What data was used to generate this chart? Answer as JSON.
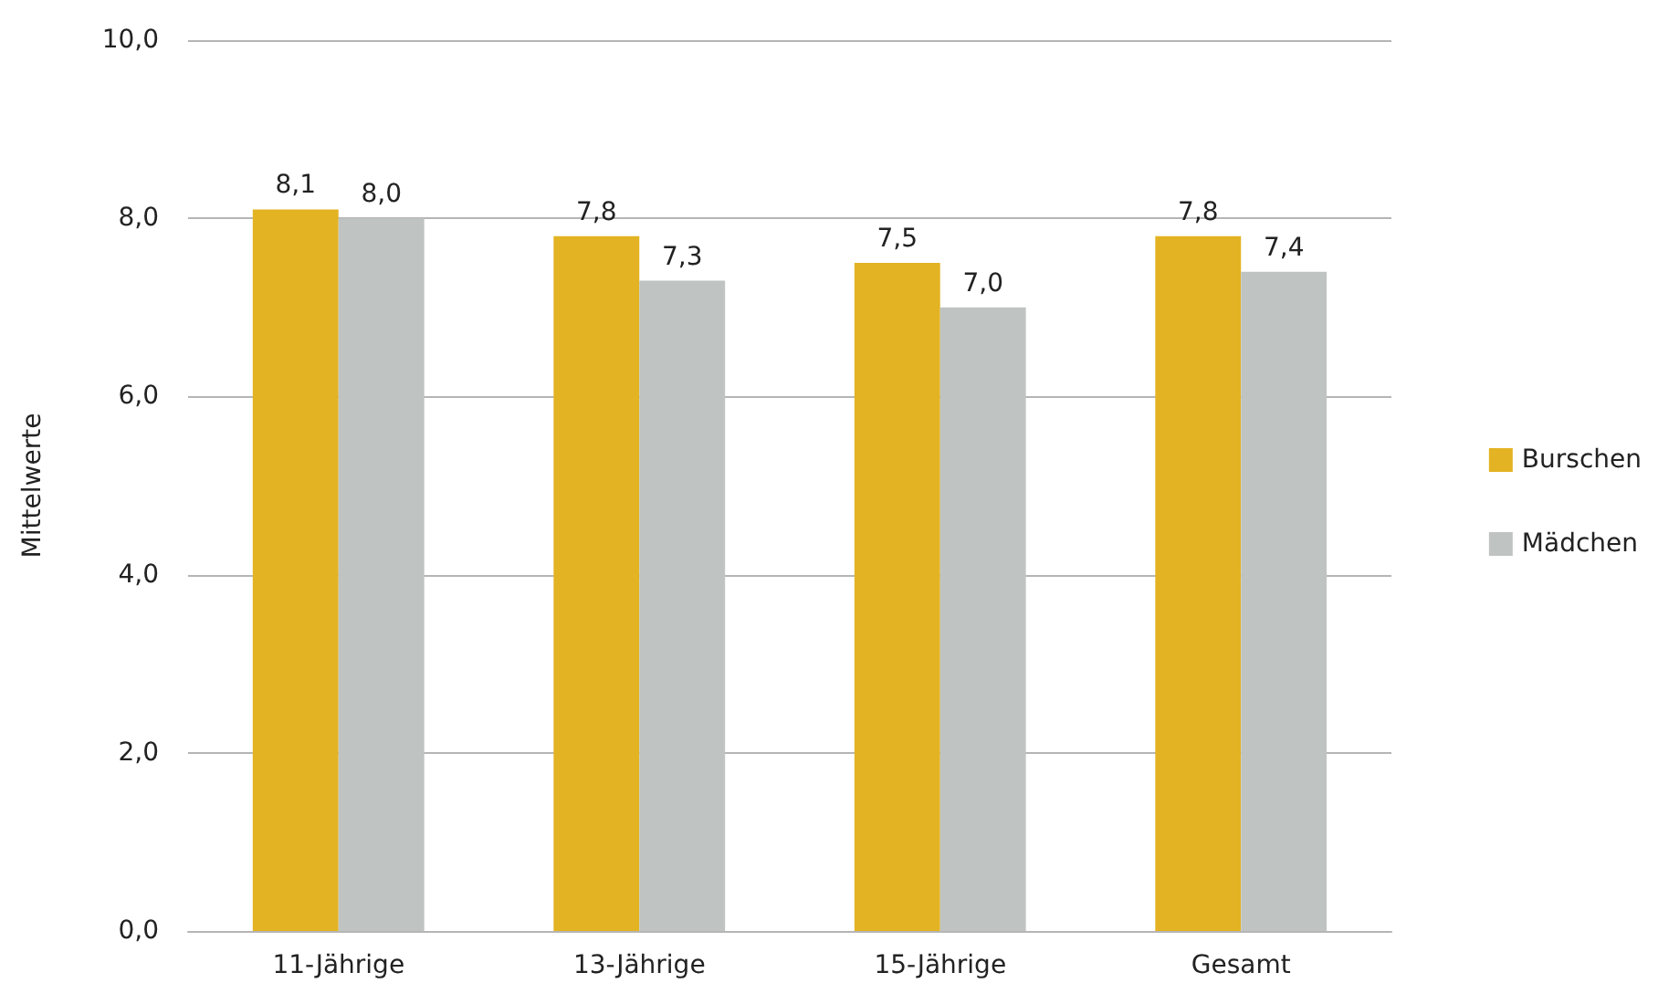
{
  "chart_data": {
    "type": "bar",
    "ylabel": "Mittelwerte",
    "categories": [
      "11-Jährige",
      "13-Jährige",
      "15-Jährige",
      "Gesamt"
    ],
    "series": [
      {
        "name": "Burschen",
        "color": "#e3b323",
        "values": [
          8.1,
          7.8,
          7.5,
          7.8
        ],
        "value_labels": [
          "8,1",
          "7,8",
          "7,5",
          "7,8"
        ]
      },
      {
        "name": "Mädchen",
        "color": "#bfc4c2",
        "values": [
          8.0,
          7.3,
          7.0,
          7.4
        ],
        "value_labels": [
          "8,0",
          "7,3",
          "7,0",
          "7,4"
        ]
      }
    ],
    "ylim": [
      0,
      10
    ],
    "yticks": [
      {
        "value": 0,
        "label": "0,0"
      },
      {
        "value": 2,
        "label": "2,0"
      },
      {
        "value": 4,
        "label": "4,0"
      },
      {
        "value": 6,
        "label": "6,0"
      },
      {
        "value": 8,
        "label": "8,0"
      },
      {
        "value": 10,
        "label": "10,0"
      }
    ],
    "grid": "y",
    "legend": "right"
  }
}
